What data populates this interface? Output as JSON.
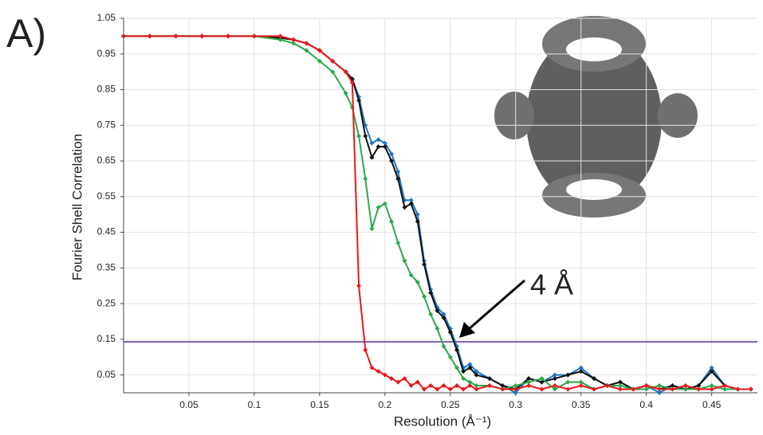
{
  "chart_data": {
    "type": "line",
    "panel_label": "A)",
    "xlabel": "Resolution (Å⁻¹)",
    "ylabel": "Fourier Shell Correlation",
    "annotation": "4 Å",
    "x": [
      0,
      0.02,
      0.04,
      0.06,
      0.08,
      0.1,
      0.12,
      0.13,
      0.14,
      0.15,
      0.16,
      0.17,
      0.175,
      0.18,
      0.185,
      0.19,
      0.195,
      0.2,
      0.205,
      0.21,
      0.215,
      0.22,
      0.225,
      0.23,
      0.235,
      0.24,
      0.245,
      0.25,
      0.255,
      0.26,
      0.265,
      0.27,
      0.28,
      0.29,
      0.3,
      0.31,
      0.32,
      0.33,
      0.34,
      0.35,
      0.36,
      0.37,
      0.38,
      0.39,
      0.4,
      0.41,
      0.42,
      0.43,
      0.44,
      0.45,
      0.46,
      0.47,
      0.48
    ],
    "series": [
      {
        "color": "#1f77c4",
        "values": [
          1,
          1,
          1,
          1,
          1,
          1,
          0.995,
          0.99,
          0.98,
          0.96,
          0.93,
          0.9,
          0.88,
          0.83,
          0.75,
          0.7,
          0.71,
          0.7,
          0.67,
          0.62,
          0.54,
          0.54,
          0.5,
          0.37,
          0.29,
          0.24,
          0.22,
          0.18,
          0.13,
          0.07,
          0.08,
          0.06,
          0.04,
          0.02,
          0,
          0.04,
          0.03,
          0.05,
          0.05,
          0.07,
          0.04,
          0.02,
          0.03,
          0.01,
          0.02,
          0,
          0.02,
          0.01,
          0.02,
          0.07,
          0.02,
          0.01,
          0.01
        ]
      },
      {
        "color": "#111111",
        "values": [
          1,
          1,
          1,
          1,
          1,
          1,
          0.995,
          0.99,
          0.98,
          0.96,
          0.93,
          0.9,
          0.88,
          0.82,
          0.72,
          0.66,
          0.69,
          0.69,
          0.65,
          0.6,
          0.52,
          0.53,
          0.48,
          0.36,
          0.28,
          0.23,
          0.21,
          0.17,
          0.12,
          0.06,
          0.07,
          0.05,
          0.04,
          0.02,
          0.01,
          0.04,
          0.03,
          0.04,
          0.05,
          0.06,
          0.04,
          0.02,
          0.03,
          0.01,
          0.02,
          0.01,
          0.02,
          0.01,
          0.02,
          0.06,
          0.02,
          0.01,
          0.01
        ]
      },
      {
        "color": "#2ca94a",
        "values": [
          1,
          1,
          1,
          1,
          1,
          1,
          0.99,
          0.98,
          0.96,
          0.93,
          0.9,
          0.84,
          0.8,
          0.72,
          0.6,
          0.46,
          0.52,
          0.53,
          0.48,
          0.42,
          0.37,
          0.33,
          0.31,
          0.27,
          0.22,
          0.18,
          0.13,
          0.1,
          0.07,
          0.04,
          0.03,
          0.02,
          0.02,
          0.01,
          0.02,
          0.03,
          0.04,
          0.01,
          0.03,
          0.03,
          0.01,
          0.02,
          0.02,
          0.01,
          0.01,
          0.02,
          0.01,
          0.01,
          0.01,
          0.02,
          0.01,
          0.01,
          0.01
        ]
      },
      {
        "color": "#e8191c",
        "values": [
          1,
          1,
          1,
          1,
          1,
          1,
          1,
          0.99,
          0.98,
          0.96,
          0.93,
          0.9,
          0.87,
          0.3,
          0.12,
          0.07,
          0.06,
          0.05,
          0.04,
          0.03,
          0.04,
          0.02,
          0.03,
          0.01,
          0.02,
          0.01,
          0.02,
          0.01,
          0.02,
          0.01,
          0.02,
          0.01,
          0.02,
          0.01,
          0.01,
          0.02,
          0.01,
          0.02,
          0.01,
          0.02,
          0.01,
          0.02,
          0.01,
          0.01,
          0.02,
          0.01,
          0.01,
          0.02,
          0.01,
          0.01,
          0.02,
          0.01,
          0.01
        ]
      }
    ],
    "threshold": 0.143,
    "threshold_color": "#5b2d91",
    "xlim": [
      0,
      0.485
    ],
    "ylim": [
      0,
      1.05
    ],
    "xticks": [
      0.05,
      0.1,
      0.15,
      0.2,
      0.25,
      0.3,
      0.35,
      0.4,
      0.45
    ],
    "yticks": [
      0.05,
      0.15,
      0.25,
      0.35,
      0.45,
      0.55,
      0.65,
      0.75,
      0.85,
      0.95,
      1.05
    ],
    "grid": true
  }
}
